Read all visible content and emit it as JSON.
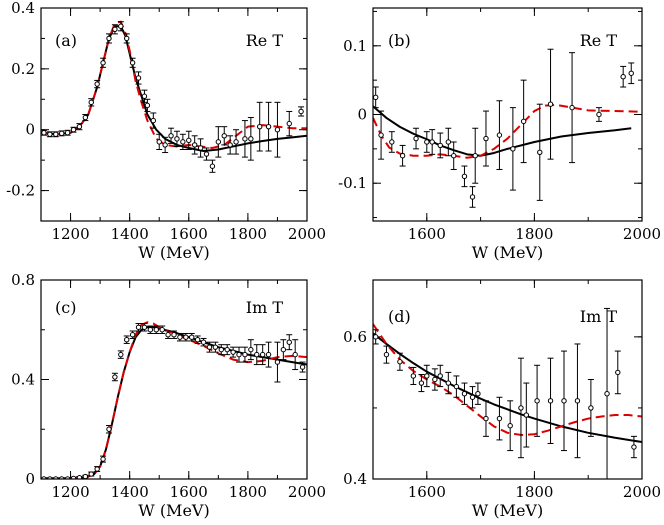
{
  "chart_data": [
    {
      "type": "line",
      "panel_tag": "(a)",
      "quantity": "Re T",
      "xlabel": "W (MeV)",
      "ylabel": "",
      "xlim": [
        1100,
        2000
      ],
      "ylim": [
        -0.3,
        0.4
      ],
      "xticks": [
        1200,
        1400,
        1600,
        1800,
        2000
      ],
      "yticks": [
        -0.2,
        0,
        0.2,
        0.4
      ],
      "xtick_labels": [
        "1200",
        "1400",
        "1600",
        "1800",
        "2000"
      ],
      "ytick_labels": [
        "-0.2",
        "0",
        "0.2",
        "0.4"
      ],
      "series": [
        {
          "name": "solid fit",
          "style": "solid",
          "color": "#000000",
          "x": [
            1100,
            1150,
            1200,
            1230,
            1260,
            1290,
            1310,
            1330,
            1350,
            1370,
            1385,
            1400,
            1420,
            1440,
            1460,
            1490,
            1520,
            1560,
            1600,
            1650,
            1700,
            1750,
            1800,
            1850,
            1900,
            1950,
            2000
          ],
          "y": [
            -0.01,
            -0.015,
            -0.01,
            0.01,
            0.05,
            0.14,
            0.22,
            0.3,
            0.34,
            0.34,
            0.31,
            0.25,
            0.17,
            0.11,
            0.05,
            0.0,
            -0.03,
            -0.05,
            -0.06,
            -0.07,
            -0.065,
            -0.055,
            -0.045,
            -0.037,
            -0.03,
            -0.025,
            -0.02
          ]
        },
        {
          "name": "dashed fit",
          "style": "dashed",
          "color": "#dd0000",
          "x": [
            1100,
            1150,
            1200,
            1230,
            1260,
            1290,
            1310,
            1330,
            1350,
            1370,
            1385,
            1400,
            1420,
            1440,
            1460,
            1490,
            1520,
            1560,
            1600,
            1640,
            1680,
            1720,
            1760,
            1800,
            1850,
            1900,
            1950,
            2000
          ],
          "y": [
            -0.01,
            -0.015,
            -0.01,
            0.01,
            0.05,
            0.14,
            0.22,
            0.3,
            0.35,
            0.355,
            0.32,
            0.26,
            0.16,
            0.09,
            0.03,
            -0.03,
            -0.05,
            -0.055,
            -0.05,
            -0.055,
            -0.06,
            -0.05,
            -0.02,
            0.01,
            0.015,
            0.01,
            0.005,
            0.005
          ]
        }
      ],
      "points": {
        "x": [
          1110,
          1130,
          1150,
          1170,
          1190,
          1210,
          1230,
          1250,
          1270,
          1290,
          1310,
          1330,
          1350,
          1370,
          1390,
          1410,
          1430,
          1450,
          1460,
          1480,
          1500,
          1520,
          1540,
          1560,
          1580,
          1600,
          1620,
          1640,
          1660,
          1680,
          1700,
          1720,
          1740,
          1760,
          1790,
          1810,
          1840,
          1870,
          1900,
          1940,
          1980
        ],
        "y": [
          -0.01,
          -0.015,
          -0.015,
          -0.012,
          -0.01,
          0.0,
          0.01,
          0.04,
          0.09,
          0.15,
          0.22,
          0.3,
          0.33,
          0.34,
          0.3,
          0.22,
          0.17,
          0.11,
          0.08,
          0.03,
          -0.04,
          -0.05,
          -0.02,
          -0.03,
          -0.04,
          -0.035,
          -0.05,
          -0.06,
          -0.08,
          -0.12,
          -0.04,
          -0.02,
          -0.05,
          -0.04,
          -0.03,
          -0.03,
          0.01,
          0.01,
          0.0,
          0.02,
          0.06
        ],
        "err": [
          0.008,
          0.008,
          0.008,
          0.008,
          0.008,
          0.008,
          0.01,
          0.01,
          0.012,
          0.012,
          0.015,
          0.015,
          0.015,
          0.015,
          0.015,
          0.015,
          0.02,
          0.02,
          0.02,
          0.025,
          0.025,
          0.025,
          0.025,
          0.025,
          0.025,
          0.03,
          0.03,
          0.03,
          0.02,
          0.02,
          0.05,
          0.03,
          0.03,
          0.04,
          0.06,
          0.07,
          0.08,
          0.08,
          0.09,
          0.04,
          0.015
        ]
      }
    },
    {
      "type": "line",
      "panel_tag": "(b)",
      "quantity": "Re T",
      "xlabel": "W (MeV)",
      "ylabel": "",
      "xlim": [
        1500,
        2000
      ],
      "ylim": [
        -0.155,
        0.155
      ],
      "xticks": [
        1600,
        1800,
        2000
      ],
      "yticks": [
        -0.1,
        0,
        0.1
      ],
      "xtick_labels": [
        "1600",
        "1800",
        "2000"
      ],
      "ytick_labels": [
        "-0.1",
        "0",
        "0.1"
      ],
      "series": [
        {
          "name": "solid fit",
          "style": "solid",
          "color": "#000000",
          "x": [
            1500,
            1525,
            1550,
            1575,
            1600,
            1625,
            1650,
            1675,
            1700,
            1725,
            1750,
            1800,
            1850,
            1900,
            1950,
            1980
          ],
          "y": [
            0.012,
            -0.005,
            -0.018,
            -0.028,
            -0.036,
            -0.045,
            -0.052,
            -0.058,
            -0.06,
            -0.056,
            -0.05,
            -0.04,
            -0.032,
            -0.027,
            -0.023,
            -0.02
          ]
        },
        {
          "name": "dashed fit",
          "style": "dashed",
          "color": "#dd0000",
          "x": [
            1500,
            1515,
            1530,
            1550,
            1575,
            1600,
            1625,
            1650,
            1675,
            1700,
            1725,
            1750,
            1775,
            1800,
            1820,
            1840,
            1870,
            1900,
            1950,
            2000
          ],
          "y": [
            -0.005,
            -0.03,
            -0.048,
            -0.057,
            -0.06,
            -0.06,
            -0.058,
            -0.06,
            -0.063,
            -0.06,
            -0.05,
            -0.035,
            -0.015,
            0.005,
            0.013,
            0.014,
            0.01,
            0.006,
            0.005,
            0.004
          ]
        }
      ],
      "points": {
        "x": [
          1505,
          1515,
          1535,
          1555,
          1580,
          1600,
          1610,
          1625,
          1640,
          1650,
          1670,
          1685,
          1690,
          1710,
          1735,
          1760,
          1780,
          1810,
          1830,
          1870,
          1920,
          1965,
          1980
        ],
        "y": [
          0.025,
          -0.03,
          -0.04,
          -0.06,
          -0.035,
          -0.04,
          -0.04,
          -0.045,
          -0.04,
          -0.06,
          -0.09,
          -0.12,
          -0.06,
          -0.035,
          -0.03,
          -0.05,
          -0.01,
          -0.055,
          0.015,
          0.01,
          0.0,
          0.055,
          0.06
        ],
        "err": [
          0.015,
          0.035,
          0.015,
          0.015,
          0.015,
          0.015,
          0.018,
          0.018,
          0.02,
          0.02,
          0.015,
          0.015,
          0.04,
          0.04,
          0.05,
          0.06,
          0.06,
          0.07,
          0.08,
          0.08,
          0.01,
          0.015,
          0.015
        ]
      }
    },
    {
      "type": "line",
      "panel_tag": "(c)",
      "quantity": "Im T",
      "xlabel": "W (MeV)",
      "ylabel": "",
      "xlim": [
        1100,
        2000
      ],
      "ylim": [
        0,
        0.8
      ],
      "xticks": [
        1200,
        1400,
        1600,
        1800,
        2000
      ],
      "yticks": [
        0,
        0.4,
        0.8
      ],
      "xtick_labels": [
        "1200",
        "1400",
        "1600",
        "1800",
        "2000"
      ],
      "ytick_labels": [
        "0",
        "0.4",
        "0.8"
      ],
      "series": [
        {
          "name": "solid fit",
          "style": "solid",
          "color": "#000000",
          "x": [
            1100,
            1200,
            1250,
            1280,
            1300,
            1320,
            1340,
            1360,
            1380,
            1400,
            1420,
            1440,
            1460,
            1480,
            1500,
            1550,
            1600,
            1650,
            1700,
            1750,
            1800,
            1850,
            1900,
            1950,
            2000
          ],
          "y": [
            0,
            0.001,
            0.005,
            0.02,
            0.05,
            0.12,
            0.22,
            0.33,
            0.43,
            0.51,
            0.57,
            0.6,
            0.61,
            0.61,
            0.605,
            0.59,
            0.57,
            0.55,
            0.53,
            0.515,
            0.5,
            0.49,
            0.48,
            0.47,
            0.46
          ]
        },
        {
          "name": "dashed fit",
          "style": "dashed",
          "color": "#dd0000",
          "x": [
            1100,
            1200,
            1250,
            1280,
            1300,
            1320,
            1340,
            1360,
            1380,
            1400,
            1420,
            1440,
            1460,
            1480,
            1500,
            1550,
            1600,
            1650,
            1700,
            1750,
            1800,
            1850,
            1900,
            1950,
            2000
          ],
          "y": [
            0,
            0.001,
            0.005,
            0.02,
            0.05,
            0.12,
            0.22,
            0.33,
            0.43,
            0.51,
            0.58,
            0.62,
            0.63,
            0.625,
            0.61,
            0.585,
            0.56,
            0.535,
            0.505,
            0.48,
            0.47,
            0.475,
            0.49,
            0.495,
            0.49
          ]
        }
      ],
      "points": {
        "x": [
          1110,
          1130,
          1150,
          1170,
          1190,
          1210,
          1230,
          1250,
          1270,
          1290,
          1310,
          1330,
          1350,
          1370,
          1390,
          1410,
          1430,
          1450,
          1470,
          1490,
          1510,
          1530,
          1550,
          1570,
          1590,
          1610,
          1630,
          1650,
          1670,
          1690,
          1710,
          1730,
          1750,
          1770,
          1790,
          1810,
          1830,
          1850,
          1870,
          1900,
          1920,
          1940,
          1960,
          1985
        ],
        "y": [
          0,
          0,
          0,
          0,
          0,
          0.002,
          0.005,
          0.01,
          0.02,
          0.04,
          0.08,
          0.2,
          0.41,
          0.5,
          0.56,
          0.58,
          0.61,
          0.61,
          0.6,
          0.6,
          0.6,
          0.58,
          0.58,
          0.57,
          0.57,
          0.57,
          0.56,
          0.55,
          0.53,
          0.53,
          0.52,
          0.52,
          0.51,
          0.5,
          0.5,
          0.52,
          0.5,
          0.5,
          0.5,
          0.47,
          0.52,
          0.55,
          0.5,
          0.45
        ],
        "err": [
          0.005,
          0.005,
          0.005,
          0.005,
          0.005,
          0.005,
          0.005,
          0.005,
          0.008,
          0.01,
          0.012,
          0.015,
          0.015,
          0.015,
          0.015,
          0.015,
          0.015,
          0.015,
          0.015,
          0.015,
          0.015,
          0.015,
          0.015,
          0.015,
          0.015,
          0.015,
          0.015,
          0.015,
          0.02,
          0.02,
          0.02,
          0.02,
          0.02,
          0.03,
          0.03,
          0.04,
          0.04,
          0.04,
          0.05,
          0.08,
          0.04,
          0.03,
          0.06,
          0.02
        ]
      }
    },
    {
      "type": "line",
      "panel_tag": "(d)",
      "quantity": "Im T",
      "xlabel": "W (MeV)",
      "ylabel": "",
      "xlim": [
        1500,
        2000
      ],
      "ylim": [
        0.4,
        0.68
      ],
      "xticks": [
        1600,
        1800,
        2000
      ],
      "yticks": [
        0.4,
        0.6
      ],
      "xtick_labels": [
        "1600",
        "1800",
        "2000"
      ],
      "ytick_labels": [
        "0.4",
        "0.6"
      ],
      "series": [
        {
          "name": "solid fit",
          "style": "solid",
          "color": "#000000",
          "x": [
            1500,
            1525,
            1550,
            1575,
            1600,
            1625,
            1650,
            1675,
            1700,
            1725,
            1750,
            1775,
            1800,
            1850,
            1900,
            1950,
            2000
          ],
          "y": [
            0.605,
            0.59,
            0.576,
            0.563,
            0.551,
            0.541,
            0.531,
            0.522,
            0.513,
            0.505,
            0.498,
            0.491,
            0.485,
            0.474,
            0.465,
            0.458,
            0.452
          ]
        },
        {
          "name": "dashed fit",
          "style": "dashed",
          "color": "#dd0000",
          "x": [
            1500,
            1525,
            1550,
            1575,
            1600,
            1625,
            1650,
            1675,
            1700,
            1725,
            1750,
            1775,
            1800,
            1825,
            1850,
            1875,
            1900,
            1925,
            1950,
            1975,
            2000
          ],
          "y": [
            0.618,
            0.59,
            0.568,
            0.552,
            0.54,
            0.53,
            0.518,
            0.503,
            0.488,
            0.474,
            0.465,
            0.462,
            0.463,
            0.468,
            0.474,
            0.48,
            0.485,
            0.488,
            0.49,
            0.49,
            0.488
          ]
        }
      ],
      "points": {
        "x": [
          1505,
          1525,
          1550,
          1575,
          1590,
          1600,
          1615,
          1625,
          1640,
          1655,
          1670,
          1685,
          1695,
          1710,
          1735,
          1755,
          1775,
          1785,
          1805,
          1830,
          1855,
          1880,
          1905,
          1935,
          1955,
          1985
        ],
        "y": [
          0.6,
          0.575,
          0.565,
          0.545,
          0.535,
          0.545,
          0.54,
          0.545,
          0.535,
          0.53,
          0.52,
          0.515,
          0.52,
          0.485,
          0.485,
          0.475,
          0.5,
          0.49,
          0.51,
          0.51,
          0.51,
          0.51,
          0.5,
          0.52,
          0.55,
          0.445
        ],
        "err": [
          0.01,
          0.012,
          0.012,
          0.012,
          0.012,
          0.015,
          0.015,
          0.015,
          0.015,
          0.015,
          0.015,
          0.015,
          0.015,
          0.025,
          0.03,
          0.035,
          0.07,
          0.045,
          0.05,
          0.06,
          0.07,
          0.08,
          0.04,
          0.12,
          0.03,
          0.015
        ]
      }
    }
  ]
}
